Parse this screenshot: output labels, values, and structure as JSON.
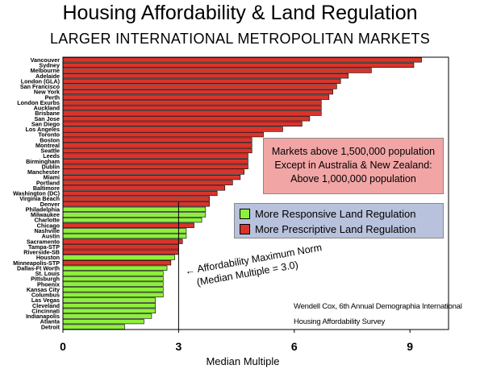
{
  "title": "Housing Affordability & Land Regulation",
  "subtitle": "LARGER INTERNATIONAL METROPOLITAN MARKETS",
  "note": {
    "line1": "Markets above 1,500,000 population",
    "line2": "Except in Australia & New Zealand:",
    "line3": "Above 1,000,000 population"
  },
  "legend": {
    "responsive": "More Responsive Land Regulation",
    "prescriptive": "More Prescriptive Land Regulation"
  },
  "annotation": {
    "arrow": "←",
    "line1": "Affordability Maximum Norm",
    "line2": "(Median Multiple = 3.0)"
  },
  "source": {
    "line1": "Wendell Cox, 6th Annual Demographia International",
    "line2": "Housing Affordability Survey"
  },
  "colors": {
    "prescriptive": "#d9342b",
    "responsive": "#8ef03c"
  },
  "chart_data": {
    "type": "bar",
    "orientation": "horizontal",
    "xlabel": "Median Multiple",
    "xlim": [
      0,
      10
    ],
    "xticks": [
      "0",
      "3",
      "6",
      "9"
    ],
    "xtick_values": [
      0,
      3,
      6,
      9
    ],
    "reference_line": 3.0,
    "categories": [
      "Vancouver",
      "Sydney",
      "Melbourne",
      "Adelaide",
      "London (GLA)",
      "San Francisco",
      "New York",
      "Perth",
      "London Exurbs",
      "Auckland",
      "Brisbane",
      "San Jose",
      "San Diego",
      "Los Angeles",
      "Toronto",
      "Boston",
      "Montreal",
      "Seattle",
      "Leeds",
      "Birmingham",
      "Dublin",
      "Manchester",
      "Miami",
      "Portland",
      "Baltimore",
      "Washington (DC)",
      "Virginia Beach",
      "Denver",
      "Philadelphia",
      "Milwaukee",
      "Charlotte",
      "Chicago",
      "Nashville",
      "Austin",
      "Sacramento",
      "Tampa-STP",
      "Riverside-SB",
      "Houston",
      "Minneapolis-STP",
      "Dallas-Ft Worth",
      "St. Louis",
      "Pittsburgh",
      "Phoenix",
      "Kansas City",
      "Columbus",
      "Las Vegas",
      "Cleveland",
      "Cincinnati",
      "Indianapolis",
      "Atlanta",
      "Detroit"
    ],
    "values": [
      9.3,
      9.1,
      8.0,
      7.4,
      7.2,
      7.1,
      7.0,
      6.9,
      6.7,
      6.7,
      6.7,
      6.4,
      6.2,
      5.7,
      5.2,
      4.9,
      4.9,
      4.9,
      4.8,
      4.8,
      4.8,
      4.7,
      4.6,
      4.4,
      4.2,
      4.0,
      3.8,
      3.8,
      3.7,
      3.7,
      3.6,
      3.4,
      3.2,
      3.2,
      3.1,
      3.0,
      3.0,
      2.9,
      2.8,
      2.7,
      2.6,
      2.6,
      2.6,
      2.6,
      2.6,
      2.4,
      2.4,
      2.4,
      2.3,
      2.1,
      1.6
    ],
    "regulation": [
      "prescriptive",
      "prescriptive",
      "prescriptive",
      "prescriptive",
      "prescriptive",
      "prescriptive",
      "prescriptive",
      "prescriptive",
      "prescriptive",
      "prescriptive",
      "prescriptive",
      "prescriptive",
      "prescriptive",
      "prescriptive",
      "prescriptive",
      "prescriptive",
      "prescriptive",
      "prescriptive",
      "prescriptive",
      "prescriptive",
      "prescriptive",
      "prescriptive",
      "prescriptive",
      "prescriptive",
      "prescriptive",
      "prescriptive",
      "prescriptive",
      "prescriptive",
      "responsive",
      "responsive",
      "responsive",
      "prescriptive",
      "responsive",
      "responsive",
      "prescriptive",
      "prescriptive",
      "prescriptive",
      "responsive",
      "prescriptive",
      "responsive",
      "responsive",
      "responsive",
      "responsive",
      "responsive",
      "responsive",
      "responsive",
      "responsive",
      "responsive",
      "responsive",
      "responsive",
      "responsive"
    ],
    "grid": false,
    "legend_position": "right"
  }
}
